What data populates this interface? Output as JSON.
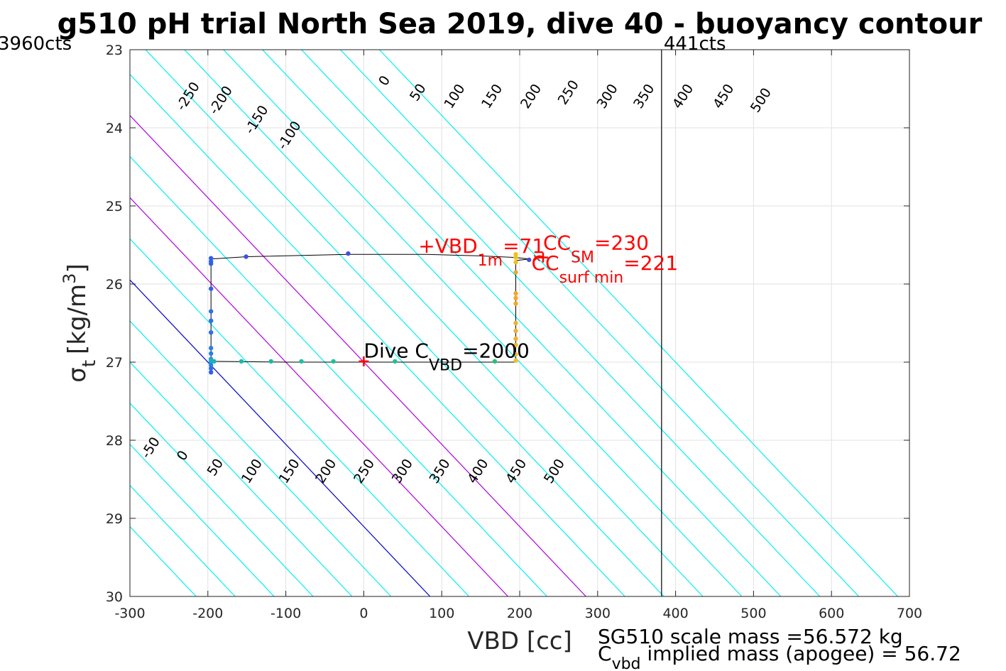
{
  "chart_data": {
    "type": "scatter",
    "title": "g510 pH trial North Sea 2019, dive 40 - buoyancy contour",
    "xlabel": "VBD [cc]",
    "ylabel_main": "σ",
    "ylabel_sub": "t",
    "ylabel_units": "[kg/m",
    "ylabel_sup": "3",
    "ylabel_end": "]",
    "xlim": [
      -300,
      700
    ],
    "ylim": [
      23,
      30
    ],
    "y_reversed": true,
    "grid": true,
    "xticks": [
      -300,
      -200,
      -100,
      0,
      100,
      200,
      300,
      400,
      500,
      600,
      700
    ],
    "yticks": [
      23,
      24,
      25,
      26,
      27,
      28,
      29,
      30
    ],
    "left_limit": {
      "label": "3960cts"
    },
    "right_limit": {
      "label": "441cts",
      "x": 382
    },
    "contours": {
      "slope_cc_per_sigma": 95,
      "ref_sigma": 27,
      "ref_offset": 200,
      "levels": [
        -300,
        -250,
        -200,
        -150,
        -100,
        -50,
        0,
        50,
        100,
        150,
        200,
        250,
        300,
        350,
        400,
        450,
        500,
        550,
        600
      ],
      "colors": {
        "default": "#00f0f0",
        "zero": "#0000cc",
        "highlight": "#b000e0"
      },
      "highlight_levels": [
        100,
        200
      ],
      "labels_top": [
        {
          "text": "-250",
          "x": -225,
          "y": 23.6
        },
        {
          "text": "-200",
          "x": -183,
          "y": 23.65
        },
        {
          "text": "-150",
          "x": -137,
          "y": 23.9
        },
        {
          "text": "-100",
          "x": -95,
          "y": 24.1
        },
        {
          "text": "0",
          "x": 27,
          "y": 23.4
        },
        {
          "text": "50",
          "x": 70,
          "y": 23.55
        },
        {
          "text": "100",
          "x": 117,
          "y": 23.6
        },
        {
          "text": "150",
          "x": 165,
          "y": 23.6
        },
        {
          "text": "200",
          "x": 215,
          "y": 23.6
        },
        {
          "text": "250",
          "x": 263,
          "y": 23.55
        },
        {
          "text": "300",
          "x": 313,
          "y": 23.6
        },
        {
          "text": "350",
          "x": 360,
          "y": 23.6
        },
        {
          "text": "400",
          "x": 410,
          "y": 23.6
        },
        {
          "text": "450",
          "x": 462,
          "y": 23.6
        },
        {
          "text": "500",
          "x": 510,
          "y": 23.65
        }
      ],
      "labels_bottom": [
        {
          "text": "-50",
          "x": -273,
          "y": 28.1
        },
        {
          "text": "0",
          "x": -232,
          "y": 28.2
        },
        {
          "text": "50",
          "x": -190,
          "y": 28.35
        },
        {
          "text": "100",
          "x": -143,
          "y": 28.4
        },
        {
          "text": "150",
          "x": -95,
          "y": 28.4
        },
        {
          "text": "200",
          "x": -48,
          "y": 28.4
        },
        {
          "text": "250",
          "x": 1,
          "y": 28.4
        },
        {
          "text": "300",
          "x": 50,
          "y": 28.4
        },
        {
          "text": "350",
          "x": 98,
          "y": 28.4
        },
        {
          "text": "400",
          "x": 147,
          "y": 28.4
        },
        {
          "text": "450",
          "x": 196,
          "y": 28.4
        },
        {
          "text": "500",
          "x": 245,
          "y": 28.4
        }
      ]
    },
    "trajectory": [
      [
        -196,
        25.68
      ],
      [
        -150,
        25.65
      ],
      [
        -20,
        25.62
      ],
      [
        80,
        25.62
      ],
      [
        150,
        25.64
      ],
      [
        195,
        25.66
      ],
      [
        212,
        25.68
      ],
      [
        195,
        25.7
      ],
      [
        195,
        27.0
      ],
      [
        -100,
        27.0
      ],
      [
        -196,
        26.99
      ],
      [
        -196,
        25.68
      ]
    ],
    "points": [
      {
        "x": -196,
        "y": 25.67,
        "c": "#3060e8"
      },
      {
        "x": -196,
        "y": 25.71,
        "c": "#3060e8"
      },
      {
        "x": -196,
        "y": 25.74,
        "c": "#3060e8"
      },
      {
        "x": -196,
        "y": 26.06,
        "c": "#3060e8"
      },
      {
        "x": -196,
        "y": 26.35,
        "c": "#2d70e6"
      },
      {
        "x": -196,
        "y": 26.47,
        "c": "#2d70e6"
      },
      {
        "x": -196,
        "y": 26.62,
        "c": "#2d70e6"
      },
      {
        "x": -196,
        "y": 26.82,
        "c": "#2a80e2"
      },
      {
        "x": -196,
        "y": 26.89,
        "c": "#2a80e2"
      },
      {
        "x": -196,
        "y": 26.96,
        "c": "#2590d8"
      },
      {
        "x": -196,
        "y": 27.0,
        "c": "#20a0cc"
      },
      {
        "x": -196,
        "y": 27.04,
        "c": "#2a80e2"
      },
      {
        "x": -196,
        "y": 27.08,
        "c": "#2d70e6"
      },
      {
        "x": -196,
        "y": 27.13,
        "c": "#3060e8"
      },
      {
        "x": -196,
        "y": 26.98,
        "c": "#1cb0c0"
      },
      {
        "x": -192,
        "y": 26.99,
        "c": "#1cb0c0"
      },
      {
        "x": -157,
        "y": 26.99,
        "c": "#1ab8a8"
      },
      {
        "x": -119,
        "y": 26.99,
        "c": "#1ab8a8"
      },
      {
        "x": -80,
        "y": 26.99,
        "c": "#1ec0a0"
      },
      {
        "x": -39,
        "y": 26.99,
        "c": "#1ec0a0"
      },
      {
        "x": 40,
        "y": 26.99,
        "c": "#20c090"
      },
      {
        "x": 168,
        "y": 26.99,
        "c": "#28c070"
      },
      {
        "x": 195,
        "y": 26.98,
        "c": "#f0c030"
      },
      {
        "x": 195,
        "y": 26.9,
        "c": "#f0b830"
      },
      {
        "x": 195,
        "y": 26.78,
        "c": "#f0b830"
      },
      {
        "x": 195,
        "y": 26.7,
        "c": "#f0b030"
      },
      {
        "x": 195,
        "y": 26.6,
        "c": "#f0b030"
      },
      {
        "x": 195,
        "y": 26.5,
        "c": "#f0b030"
      },
      {
        "x": 195,
        "y": 26.25,
        "c": "#f0a830"
      },
      {
        "x": 195,
        "y": 26.18,
        "c": "#f0a830"
      },
      {
        "x": 195,
        "y": 26.12,
        "c": "#f0a830"
      },
      {
        "x": 195,
        "y": 25.85,
        "c": "#f0a830"
      },
      {
        "x": 195,
        "y": 25.72,
        "c": "#f0c020"
      },
      {
        "x": 195,
        "y": 25.66,
        "c": "#f0c020"
      },
      {
        "x": 195,
        "y": 25.62,
        "c": "#f0c020"
      },
      {
        "x": 212,
        "y": 25.69,
        "c": "#4050e0"
      },
      {
        "x": -20,
        "y": 25.61,
        "c": "#4050e0"
      },
      {
        "x": -151,
        "y": 25.65,
        "c": "#4050e0"
      }
    ],
    "markers": [
      {
        "x": 0,
        "y": 26.99,
        "c": "#ff0000"
      },
      {
        "x": 230,
        "y": 25.66,
        "c": "#ff0000"
      }
    ],
    "x_marker": {
      "x": 222,
      "y": 25.67,
      "c": "#ff0000"
    },
    "annotations": {
      "vbd1m": {
        "pre": "+VBD",
        "sub": "1m",
        "post": "=71",
        "x": 70,
        "y": 25.6
      },
      "ccsm": {
        "pre": "CC",
        "sub": "SM",
        "post": "=230",
        "x": 230,
        "y": 25.56
      },
      "ccsurf": {
        "pre": "CC",
        "sub": "surf min",
        "post": "=221",
        "x": 215,
        "y": 25.82
      },
      "divecvbd": {
        "pre": "Dive C",
        "sub": "VBD",
        "post": "=2000",
        "x": 0,
        "y": 26.94
      }
    },
    "footer": {
      "line1": "SG510 scale mass =56.572 kg",
      "line2_pre": "C",
      "line2_sub": "vbd",
      "line2_post": " implied mass (apogee) = 56.72"
    }
  }
}
